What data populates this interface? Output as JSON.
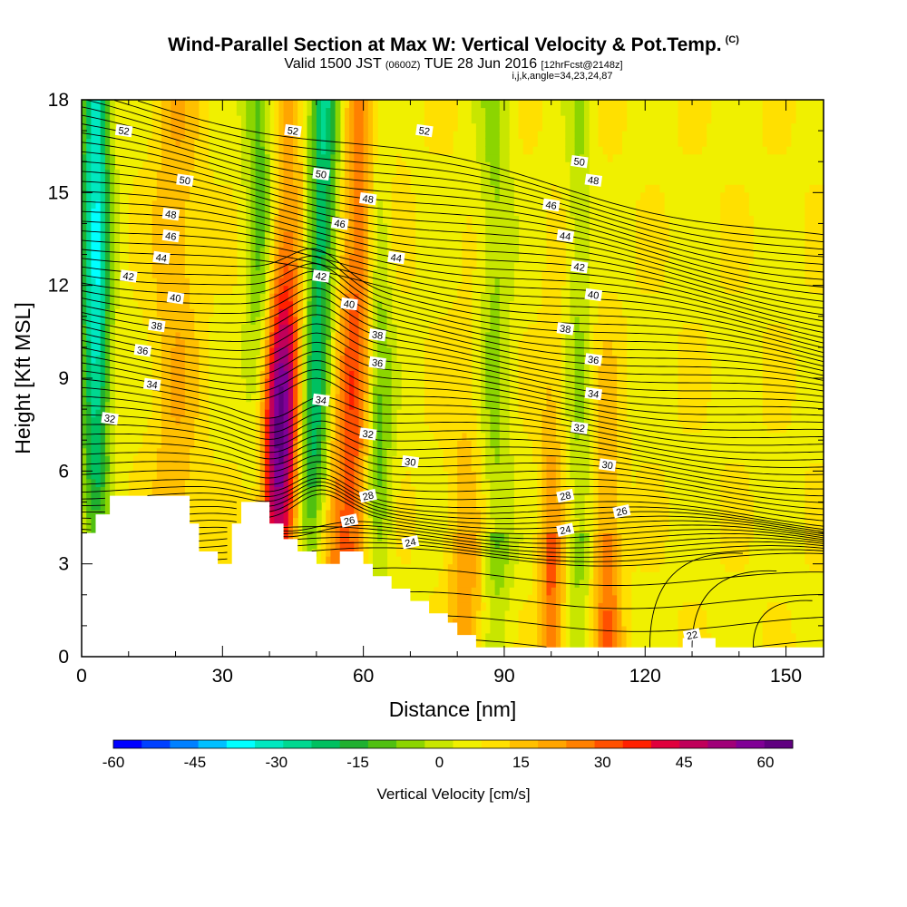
{
  "title": {
    "main": "Wind-Parallel Section at Max W: Vertical Velocity & Pot.Temp.",
    "tag": "(C)",
    "valid_prefix": "Valid 1500 JST",
    "valid_zulu": "(0600Z)",
    "valid_date": "TUE 28 Jun 2016",
    "forecast": "[12hrFcst@2148z]",
    "indices": "i,j,k,angle=34,23,24,87"
  },
  "colors": {
    "palette": [
      "#0000ff",
      "#0040ff",
      "#0080ff",
      "#00c0ff",
      "#00ffff",
      "#00e8c0",
      "#00d890",
      "#00c060",
      "#20b030",
      "#50c010",
      "#8cd500",
      "#c8e600",
      "#f0f000",
      "#ffe000",
      "#ffc000",
      "#ffa500",
      "#ff8000",
      "#ff5000",
      "#ff2000",
      "#e0003c",
      "#c0005a",
      "#a00078",
      "#800096",
      "#600080"
    ],
    "contour": "#000000",
    "terrain": "#ffffff"
  },
  "chart_data": {
    "type": "heatmap",
    "xlabel": "Distance [nm]",
    "ylabel": "Height [Kft MSL]",
    "xlim": [
      0,
      158
    ],
    "ylim": [
      0,
      18
    ],
    "x_ticks": [
      "0",
      "30",
      "60",
      "90",
      "120",
      "150"
    ],
    "y_ticks": [
      "0",
      "3",
      "6",
      "9",
      "12",
      "15",
      "18"
    ],
    "colorbar": {
      "title": "Vertical Velocity [cm/s]",
      "ticks": [
        "-60",
        "-45",
        "-30",
        "-15",
        "0",
        "15",
        "30",
        "45",
        "60"
      ],
      "range": [
        -60,
        65
      ],
      "step": 5
    },
    "contours": {
      "variable": "potential temperature",
      "labels": [
        "22",
        "24",
        "26",
        "28",
        "30",
        "32",
        "34",
        "36",
        "38",
        "40",
        "42",
        "44",
        "46",
        "48",
        "50",
        "52"
      ]
    },
    "updraft_zones": [
      {
        "x": 20,
        "w": 5,
        "peak": 10
      },
      {
        "x": 42,
        "w": 4.5,
        "peak": 45
      },
      {
        "x": 58,
        "w": 5,
        "peak": 25
      },
      {
        "x": 82,
        "w": 4,
        "peak": 15
      },
      {
        "x": 100,
        "w": 2.5,
        "peak": 22
      },
      {
        "x": 112,
        "w": 3,
        "peak": 20
      }
    ],
    "downdraft_zones": [
      {
        "x": 3,
        "w": 3,
        "peak": -32
      },
      {
        "x": 38,
        "w": 3,
        "peak": -18
      },
      {
        "x": 50,
        "w": 3.5,
        "peak": -30
      },
      {
        "x": 63,
        "w": 3,
        "peak": -22
      },
      {
        "x": 88,
        "w": 3.5,
        "peak": -18
      },
      {
        "x": 106,
        "w": 2.5,
        "peak": -16
      }
    ],
    "terrain_profile": [
      [
        0,
        4.0
      ],
      [
        3,
        4.0
      ],
      [
        3,
        4.6
      ],
      [
        6,
        4.6
      ],
      [
        6,
        5.2
      ],
      [
        20,
        5.2
      ],
      [
        23,
        5.2
      ],
      [
        23,
        4.3
      ],
      [
        25,
        4.3
      ],
      [
        25,
        3.4
      ],
      [
        29,
        3.4
      ],
      [
        29,
        3.0
      ],
      [
        32,
        3.0
      ],
      [
        32,
        4.3
      ],
      [
        34,
        4.3
      ],
      [
        34,
        5.0
      ],
      [
        40,
        5.0
      ],
      [
        40,
        4.3
      ],
      [
        43,
        4.3
      ],
      [
        43,
        3.8
      ],
      [
        46,
        3.8
      ],
      [
        46,
        3.4
      ],
      [
        50,
        3.4
      ],
      [
        50,
        3.0
      ],
      [
        55,
        3.0
      ],
      [
        55,
        3.4
      ],
      [
        60,
        3.4
      ],
      [
        60,
        3.0
      ],
      [
        62,
        3.0
      ],
      [
        62,
        2.6
      ],
      [
        66,
        2.6
      ],
      [
        66,
        2.2
      ],
      [
        70,
        2.2
      ],
      [
        70,
        1.8
      ],
      [
        74,
        1.8
      ],
      [
        74,
        1.4
      ],
      [
        78,
        1.4
      ],
      [
        78,
        1.1
      ],
      [
        80,
        1.1
      ],
      [
        80,
        0.7
      ],
      [
        84,
        0.7
      ],
      [
        84,
        0.3
      ],
      [
        128,
        0.3
      ],
      [
        128,
        0.6
      ],
      [
        135,
        0.6
      ],
      [
        135,
        0.3
      ],
      [
        158,
        0.3
      ]
    ],
    "contour_label_marks": [
      [
        "52",
        9,
        17.0
      ],
      [
        "50",
        22,
        15.4
      ],
      [
        "48",
        19,
        14.3
      ],
      [
        "46",
        19,
        13.6
      ],
      [
        "44",
        17,
        12.9
      ],
      [
        "42",
        10,
        12.3
      ],
      [
        "40",
        20,
        11.6
      ],
      [
        "38",
        16,
        10.7
      ],
      [
        "36",
        13,
        9.9
      ],
      [
        "34",
        15,
        8.8
      ],
      [
        "32",
        6,
        7.7
      ],
      [
        "52",
        45,
        17.0
      ],
      [
        "50",
        51,
        15.6
      ],
      [
        "48",
        61,
        14.8
      ],
      [
        "46",
        55,
        14.0
      ],
      [
        "44",
        67,
        12.9
      ],
      [
        "42",
        51,
        12.3
      ],
      [
        "40",
        57,
        11.4
      ],
      [
        "38",
        63,
        10.4
      ],
      [
        "36",
        63,
        9.5
      ],
      [
        "34",
        51,
        8.3
      ],
      [
        "32",
        61,
        7.2
      ],
      [
        "30",
        70,
        6.3
      ],
      [
        "28",
        61,
        5.2
      ],
      [
        "26",
        57,
        4.4
      ],
      [
        "24",
        70,
        3.7
      ],
      [
        "52",
        73,
        17.0
      ],
      [
        "50",
        106,
        16.0
      ],
      [
        "48",
        109,
        15.4
      ],
      [
        "46",
        100,
        14.6
      ],
      [
        "44",
        103,
        13.6
      ],
      [
        "42",
        106,
        12.6
      ],
      [
        "40",
        109,
        11.7
      ],
      [
        "38",
        103,
        10.6
      ],
      [
        "36",
        109,
        9.6
      ],
      [
        "34",
        109,
        8.5
      ],
      [
        "32",
        106,
        7.4
      ],
      [
        "30",
        112,
        6.2
      ],
      [
        "28",
        103,
        5.2
      ],
      [
        "26",
        115,
        4.7
      ],
      [
        "24",
        103,
        4.1
      ],
      [
        "22",
        130,
        0.7
      ]
    ]
  }
}
